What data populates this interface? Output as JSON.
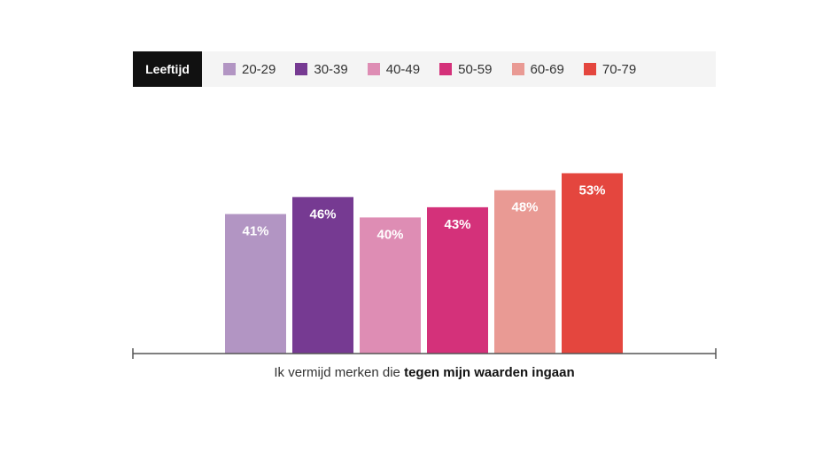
{
  "legend": {
    "title": "Leeftijd"
  },
  "chart_data": {
    "type": "bar",
    "title": "",
    "categories": [
      "20-29",
      "30-39",
      "40-49",
      "50-59",
      "60-69",
      "70-79"
    ],
    "values": [
      41,
      46,
      40,
      43,
      48,
      53
    ],
    "labels": [
      "41%",
      "46%",
      "40%",
      "43%",
      "48%",
      "53%"
    ],
    "colors": [
      "#b295c3",
      "#763a92",
      "#de8db4",
      "#d4317a",
      "#e99a94",
      "#e4463e"
    ],
    "xlabel_prefix": "Ik vermijd merken die ",
    "xlabel_bold": "tegen mijn waarden ingaan",
    "ylim": [
      0,
      60
    ],
    "legend_position": "top",
    "grid": false
  }
}
